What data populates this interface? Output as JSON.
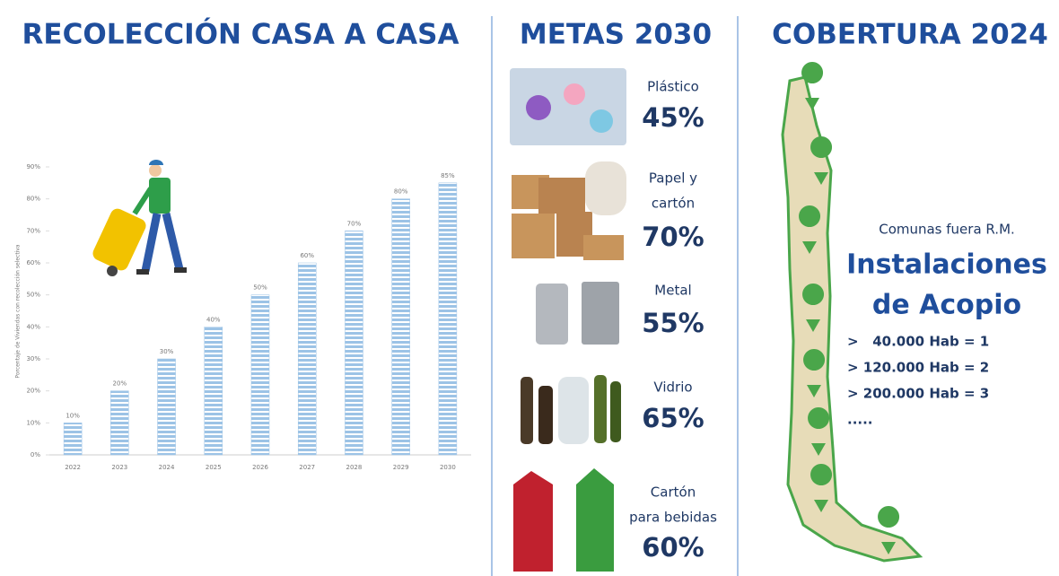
{
  "left": {
    "title": "RECOLECCIÓN CASA A CASA"
  },
  "chart_data": {
    "type": "bar",
    "y_label": "Porcentaje de Viviendas con recolección selectiva",
    "categories": [
      "2022",
      "2023",
      "2024",
      "2025",
      "2026",
      "2027",
      "2028",
      "2029",
      "2030"
    ],
    "values": [
      10,
      20,
      30,
      40,
      50,
      60,
      70,
      80,
      85
    ],
    "value_labels": [
      "10%",
      "20%",
      "30%",
      "40%",
      "50%",
      "60%",
      "70%",
      "80%",
      "85%"
    ],
    "color": "#9cc3e6",
    "ylim": [
      0,
      90
    ],
    "yticks": [
      {
        "value": 0,
        "label": "0%"
      },
      {
        "value": 10,
        "label": "10%"
      },
      {
        "value": 20,
        "label": "20%"
      },
      {
        "value": 30,
        "label": "30%"
      },
      {
        "value": 40,
        "label": "40%"
      },
      {
        "value": 50,
        "label": "50%"
      },
      {
        "value": 60,
        "label": "60%"
      },
      {
        "value": 70,
        "label": "70%"
      },
      {
        "value": 80,
        "label": "80%"
      },
      {
        "value": 90,
        "label": "90%"
      }
    ],
    "grid": false
  },
  "middle": {
    "title": "METAS 2030",
    "items": [
      {
        "label": [
          "Plástico"
        ],
        "value": "45%"
      },
      {
        "label": [
          "Papel y",
          "cartón"
        ],
        "value": "70%"
      },
      {
        "label": [
          "Metal"
        ],
        "value": "55%"
      },
      {
        "label": [
          "Vidrio"
        ],
        "value": "65%"
      },
      {
        "label": [
          "Cartón",
          "para bebidas"
        ],
        "value": "60%"
      }
    ]
  },
  "right": {
    "title": "COBERTURA 2024",
    "subtitle": "Comunas fuera R.M.",
    "heading": [
      "Instalaciones",
      "de Acopio"
    ],
    "rules": [
      ">   40.000 Hab = 1",
      "> 120.000 Hab = 2",
      "> 200.000 Hab = 3",
      "....."
    ]
  }
}
